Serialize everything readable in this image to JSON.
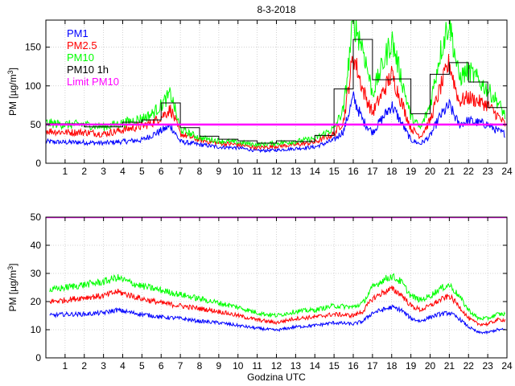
{
  "chart_data": [
    {
      "type": "line",
      "title": "8-3-2018",
      "ylabel": "PM [µg/m³]",
      "xlabel": "",
      "xlim": [
        0,
        24
      ],
      "ylim": [
        0,
        185
      ],
      "xticks": [
        1,
        2,
        3,
        4,
        5,
        6,
        7,
        8,
        9,
        10,
        11,
        12,
        13,
        14,
        15,
        16,
        17,
        18,
        19,
        20,
        21,
        22,
        23,
        24
      ],
      "yticks": [
        0,
        50,
        100,
        150
      ],
      "grid": true,
      "legend": "top-left",
      "legend_entries": [
        {
          "name": "PM1",
          "color": "#0000ff"
        },
        {
          "name": "PM2.5",
          "color": "#ff0000"
        },
        {
          "name": "PM10",
          "color": "#00ff00"
        },
        {
          "name": "PM10 1h",
          "color": "#000000"
        },
        {
          "name": "Limit PM10",
          "color": "#ff00ff"
        }
      ],
      "series": [
        {
          "name": "PM1",
          "color": "#0000ff",
          "x": [
            0,
            1,
            2,
            3,
            4,
            5,
            5.5,
            6,
            6.5,
            7,
            8,
            9,
            10,
            11,
            12,
            13,
            14,
            15,
            15.5,
            16,
            16.5,
            17,
            18,
            19,
            19.5,
            20,
            20.5,
            21,
            21.5,
            22,
            23,
            23.5,
            23.9
          ],
          "y": [
            28,
            27,
            27,
            26,
            28,
            30,
            36,
            42,
            48,
            28,
            24,
            21,
            20,
            16,
            17,
            19,
            21,
            30,
            42,
            85,
            55,
            40,
            75,
            30,
            25,
            35,
            60,
            75,
            50,
            55,
            50,
            42,
            38
          ]
        },
        {
          "name": "PM2.5",
          "color": "#ff0000",
          "x": [
            0,
            1,
            2,
            3,
            4,
            5,
            5.5,
            6,
            6.5,
            7,
            8,
            9,
            10,
            11,
            12,
            13,
            14,
            15,
            15.5,
            16,
            16.5,
            17,
            18,
            19,
            19.5,
            20,
            20.5,
            21,
            21.5,
            22,
            23,
            23.5,
            23.9
          ],
          "y": [
            42,
            40,
            40,
            38,
            43,
            48,
            52,
            60,
            70,
            38,
            30,
            26,
            24,
            20,
            22,
            24,
            27,
            38,
            55,
            140,
            95,
            65,
            115,
            45,
            35,
            55,
            95,
            130,
            80,
            85,
            75,
            62,
            50
          ]
        },
        {
          "name": "PM10",
          "color": "#00ff00",
          "x": [
            0,
            1,
            2,
            3,
            4,
            5,
            5.5,
            6,
            6.5,
            7,
            8,
            9,
            10,
            11,
            12,
            13,
            14,
            15,
            15.5,
            16,
            16.5,
            17,
            18,
            19,
            19.5,
            20,
            20.5,
            21,
            21.5,
            22,
            23,
            23.5,
            23.9
          ],
          "y": [
            52,
            50,
            50,
            47,
            52,
            58,
            63,
            75,
            90,
            44,
            33,
            29,
            27,
            24,
            26,
            28,
            32,
            45,
            70,
            185,
            150,
            90,
            160,
            60,
            45,
            75,
            140,
            185,
            110,
            120,
            95,
            80,
            62
          ]
        },
        {
          "name": "PM10 1h",
          "color": "#000000",
          "step": true,
          "x": [
            0,
            1,
            2,
            3,
            4,
            5,
            6,
            7,
            8,
            9,
            10,
            11,
            12,
            13,
            14,
            15,
            16,
            17,
            18,
            19,
            20,
            21,
            22,
            23,
            24
          ],
          "y": [
            51,
            51,
            47,
            47,
            53,
            56,
            78,
            46,
            35,
            31,
            29,
            26,
            29,
            28,
            36,
            96,
            160,
            108,
            109,
            64,
            115,
            130,
            105,
            72,
            72
          ]
        },
        {
          "name": "Limit PM10",
          "color": "#ff00ff",
          "x": [
            0,
            24
          ],
          "y": [
            50,
            50
          ]
        }
      ]
    },
    {
      "type": "line",
      "title": "",
      "ylabel": "PM [µg/m³]",
      "xlabel": "Godzina UTC",
      "xlim": [
        0,
        24
      ],
      "ylim": [
        0,
        50
      ],
      "xticks": [
        1,
        2,
        3,
        4,
        5,
        6,
        7,
        8,
        9,
        10,
        11,
        12,
        13,
        14,
        15,
        16,
        17,
        18,
        19,
        20,
        21,
        22,
        23,
        24
      ],
      "yticks": [
        0,
        10,
        20,
        30,
        40,
        50
      ],
      "grid": true,
      "series": [
        {
          "name": "PM1",
          "color": "#0000ff",
          "x": [
            0.2,
            1,
            2,
            3,
            3.7,
            4.5,
            5,
            6,
            7,
            8,
            9,
            10,
            11,
            12,
            13,
            14,
            15,
            16,
            16.5,
            17,
            17.5,
            18,
            18.5,
            19,
            19.5,
            20,
            20.5,
            21,
            21.5,
            22,
            22.5,
            23,
            23.5,
            23.9
          ],
          "y": [
            15,
            15.5,
            15.5,
            16,
            17,
            16,
            15.5,
            14.5,
            14,
            13,
            12.5,
            11.5,
            10.5,
            9.8,
            11,
            11.5,
            12.5,
            12,
            13,
            16,
            17,
            18,
            17,
            14,
            13,
            14.5,
            15.5,
            16,
            14,
            11,
            9,
            9,
            10,
            10
          ]
        },
        {
          "name": "PM2.5",
          "color": "#ff0000",
          "x": [
            0.2,
            1,
            2,
            3,
            3.7,
            4.5,
            5,
            6,
            7,
            8,
            9,
            10,
            11,
            12,
            13,
            14,
            15,
            16,
            16.5,
            17,
            17.5,
            18,
            18.5,
            19,
            19.5,
            20,
            20.5,
            21,
            21.5,
            22,
            22.5,
            23,
            23.5,
            23.9
          ],
          "y": [
            20,
            20.5,
            21.5,
            22,
            23.5,
            22,
            21,
            19.5,
            18.5,
            17.5,
            16.5,
            15,
            13.5,
            12.5,
            14,
            14.5,
            15.5,
            15,
            16.5,
            21,
            23,
            24.5,
            22.5,
            18.5,
            17,
            18.5,
            20.5,
            22,
            18.5,
            14,
            12,
            12,
            13.5,
            13.5
          ]
        },
        {
          "name": "PM10",
          "color": "#00ff00",
          "x": [
            0.2,
            1,
            2,
            3,
            3.7,
            4.5,
            5,
            6,
            7,
            8,
            9,
            10,
            11,
            12,
            13,
            14,
            15,
            16,
            16.5,
            17,
            17.5,
            18,
            18.5,
            19,
            19.5,
            20,
            20.5,
            21,
            21.5,
            22,
            22.5,
            23,
            23.5,
            23.9
          ],
          "y": [
            24,
            25,
            26,
            27,
            28.5,
            26.5,
            25.5,
            24,
            22.5,
            21,
            19.5,
            18,
            16,
            15,
            16.5,
            17,
            18.5,
            18,
            19.5,
            25,
            27.5,
            29,
            27,
            22,
            20.5,
            22,
            24.5,
            26,
            22,
            17,
            14,
            14,
            15.5,
            15.5
          ]
        },
        {
          "name": "Limit PM10",
          "color": "#ff00ff",
          "x": [
            0,
            24
          ],
          "y": [
            50,
            50
          ]
        }
      ]
    }
  ]
}
